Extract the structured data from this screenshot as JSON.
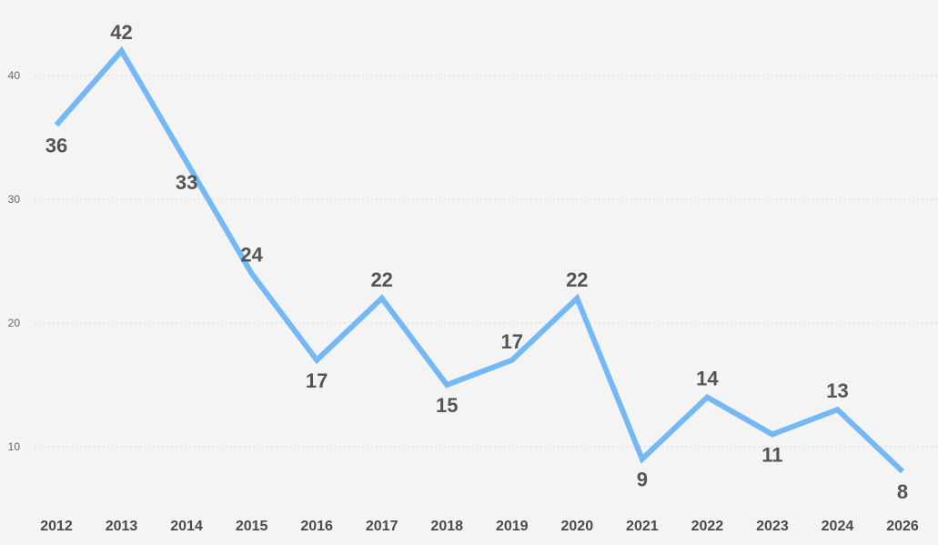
{
  "chart_data": {
    "type": "line",
    "categories": [
      "2012",
      "2013",
      "2014",
      "2015",
      "2016",
      "2017",
      "2018",
      "2019",
      "2020",
      "2021",
      "2022",
      "2023",
      "2024",
      "2026"
    ],
    "series": [
      {
        "values": [
          36,
          42,
          33,
          24,
          17,
          22,
          15,
          17,
          22,
          9,
          14,
          11,
          13,
          8
        ],
        "label_positions": [
          "below",
          "above",
          "below",
          "above",
          "below",
          "above",
          "below",
          "above",
          "above",
          "below",
          "above",
          "below",
          "above",
          "below"
        ]
      }
    ],
    "y_ticks": [
      10,
      20,
      30,
      40
    ],
    "ylim": [
      5,
      45
    ],
    "grid": true,
    "legend": "none",
    "colors": {
      "line": "#74b9f5",
      "background": "#f4f4f4",
      "grid": "#d9d9d9",
      "label": "#555555"
    }
  }
}
